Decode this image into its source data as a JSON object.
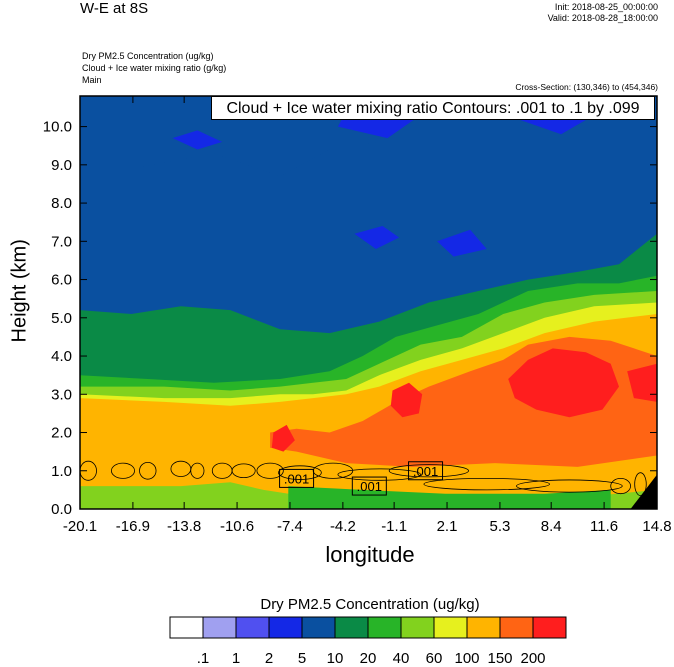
{
  "header": {
    "title": "W-E at 8S",
    "init": "Init: 2018-08-25_00:00:00",
    "valid": "Valid: 2018-08-28_18:00:00",
    "field_1": "Dry PM2.5 Concentration   (ug/kg)",
    "field_2": "Cloud + Ice water mixing ratio   (g/kg)",
    "field_3": "Main",
    "cross_section": "Cross-Section: (130,346) to (454,346)"
  },
  "contour_info": "Cloud + Ice water mixing ratio Contours: .001 to .1 by .099",
  "chart_data": {
    "type": "heatmap",
    "title": "W-E at 8S",
    "xlabel": "longitude",
    "ylabel": "Height (km)",
    "xlim": [
      -20.1,
      14.8
    ],
    "ylim": [
      0.0,
      10.8
    ],
    "x_ticks": [
      "-20.1",
      "-16.9",
      "-13.8",
      "-10.6",
      "-7.4",
      "-4.2",
      "-1.1",
      "2.1",
      "5.3",
      "8.4",
      "11.6",
      "14.8"
    ],
    "x_tick_values": [
      -20.1,
      -16.9,
      -13.8,
      -10.6,
      -7.4,
      -4.2,
      -1.1,
      2.1,
      5.3,
      8.4,
      11.6,
      14.8
    ],
    "y_ticks": [
      "0.0",
      "1.0",
      "2.0",
      "3.0",
      "4.0",
      "5.0",
      "6.0",
      "7.0",
      "8.0",
      "9.0",
      "10.0"
    ],
    "y_tick_values": [
      0.0,
      1.0,
      2.0,
      3.0,
      4.0,
      5.0,
      6.0,
      7.0,
      8.0,
      9.0,
      10.0
    ],
    "colorbar": {
      "title": "Dry PM2.5 Concentration  (ug/kg)",
      "levels": [
        ".1",
        "1",
        "2",
        "5",
        "10",
        "20",
        "40",
        "60",
        "100",
        "150",
        "200"
      ],
      "colors": [
        "#ffffff",
        "#a0a0f0",
        "#5050f0",
        "#1428e6",
        "#0a50a0",
        "#0a8a46",
        "#28b428",
        "#82d21e",
        "#e6f01e",
        "#ffb400",
        "#ff6414",
        "#ff1e1e"
      ]
    },
    "contour_labels": [
      ".001",
      ".001",
      ".001"
    ],
    "contour_label_positions": [
      [
        -7.0,
        0.8
      ],
      [
        -2.6,
        0.6
      ],
      [
        0.8,
        1.0
      ]
    ],
    "layers": [
      {
        "level": "1",
        "top": [
          [
            -20.1,
            10.8
          ],
          [
            14.8,
            10.8
          ]
        ]
      },
      {
        "level": "5",
        "top": [
          [
            -20.1,
            10.8
          ],
          [
            14.8,
            10.8
          ]
        ]
      },
      {
        "level": "10",
        "top": [
          [
            -20.1,
            5.2
          ],
          [
            -17.0,
            5.1
          ],
          [
            -14.0,
            5.3
          ],
          [
            -11.0,
            5.2
          ],
          [
            -8.0,
            4.7
          ],
          [
            -5.0,
            4.6
          ],
          [
            -2.0,
            4.9
          ],
          [
            1.0,
            5.4
          ],
          [
            4.0,
            5.7
          ],
          [
            7.0,
            6.0
          ],
          [
            10.0,
            6.2
          ],
          [
            12.5,
            6.4
          ],
          [
            14.8,
            7.2
          ]
        ]
      },
      {
        "level": "20",
        "top": [
          [
            -20.1,
            3.5
          ],
          [
            -16.0,
            3.4
          ],
          [
            -12.0,
            3.3
          ],
          [
            -8.0,
            3.4
          ],
          [
            -5.0,
            3.6
          ],
          [
            -3.0,
            4.0
          ],
          [
            -1.0,
            4.5
          ],
          [
            1.5,
            4.8
          ],
          [
            4.0,
            5.1
          ],
          [
            7.0,
            5.7
          ],
          [
            10.0,
            5.9
          ],
          [
            12.5,
            5.9
          ],
          [
            14.8,
            6.1
          ]
        ]
      },
      {
        "level": "40",
        "top": [
          [
            -20.1,
            3.2
          ],
          [
            -15.0,
            3.2
          ],
          [
            -11.0,
            3.1
          ],
          [
            -8.0,
            3.2
          ],
          [
            -6.0,
            3.3
          ],
          [
            -4.0,
            3.4
          ],
          [
            -2.0,
            3.8
          ],
          [
            0.5,
            4.3
          ],
          [
            3.0,
            4.5
          ],
          [
            5.5,
            5.1
          ],
          [
            8.0,
            5.4
          ],
          [
            11.0,
            5.6
          ],
          [
            14.8,
            5.7
          ]
        ]
      },
      {
        "level": "60",
        "top": [
          [
            -20.1,
            3.0
          ],
          [
            -15.0,
            2.9
          ],
          [
            -11.0,
            2.9
          ],
          [
            -8.0,
            3.0
          ],
          [
            -6.0,
            3.0
          ],
          [
            -4.0,
            3.1
          ],
          [
            -2.0,
            3.5
          ],
          [
            0.5,
            3.9
          ],
          [
            3.0,
            4.2
          ],
          [
            5.5,
            4.6
          ],
          [
            8.0,
            5.0
          ],
          [
            11.0,
            5.3
          ],
          [
            14.8,
            5.4
          ]
        ]
      },
      {
        "level": "100",
        "top": [
          [
            -20.1,
            2.9
          ],
          [
            -15.0,
            2.8
          ],
          [
            -11.0,
            2.7
          ],
          [
            -8.0,
            2.8
          ],
          [
            -6.0,
            2.9
          ],
          [
            -4.0,
            3.0
          ],
          [
            -2.0,
            3.2
          ],
          [
            0.5,
            3.6
          ],
          [
            3.0,
            3.9
          ],
          [
            5.5,
            4.2
          ],
          [
            8.0,
            4.6
          ],
          [
            11.0,
            4.9
          ],
          [
            14.8,
            5.1
          ]
        ]
      }
    ],
    "blobs": [
      {
        "level": "150",
        "points": [
          [
            -8.6,
            2.0
          ],
          [
            -7.0,
            2.1
          ],
          [
            -5.0,
            2.0
          ],
          [
            -3.0,
            2.3
          ],
          [
            -1.0,
            2.8
          ],
          [
            1.0,
            3.2
          ],
          [
            3.5,
            3.6
          ],
          [
            5.5,
            3.9
          ],
          [
            7.0,
            4.3
          ],
          [
            9.5,
            4.5
          ],
          [
            12.0,
            4.4
          ],
          [
            14.8,
            4.0
          ],
          [
            14.8,
            1.4
          ],
          [
            10.0,
            1.1
          ],
          [
            5.0,
            1.2
          ],
          [
            0.0,
            1.1
          ],
          [
            -4.0,
            1.2
          ],
          [
            -7.0,
            1.5
          ],
          [
            -8.6,
            1.6
          ]
        ]
      },
      {
        "level": "200",
        "points": [
          [
            5.8,
            3.4
          ],
          [
            7.0,
            3.9
          ],
          [
            8.5,
            4.2
          ],
          [
            10.5,
            4.1
          ],
          [
            12.0,
            3.8
          ],
          [
            12.5,
            3.2
          ],
          [
            11.5,
            2.6
          ],
          [
            9.5,
            2.4
          ],
          [
            7.5,
            2.6
          ],
          [
            6.2,
            2.9
          ]
        ]
      },
      {
        "level": "200",
        "points": [
          [
            -1.2,
            3.1
          ],
          [
            -0.2,
            3.3
          ],
          [
            0.6,
            3.0
          ],
          [
            0.4,
            2.5
          ],
          [
            -0.6,
            2.4
          ],
          [
            -1.3,
            2.7
          ]
        ]
      },
      {
        "level": "200",
        "points": [
          [
            -8.4,
            2.0
          ],
          [
            -7.6,
            2.2
          ],
          [
            -7.1,
            1.8
          ],
          [
            -7.8,
            1.5
          ],
          [
            -8.5,
            1.6
          ]
        ]
      },
      {
        "level": "200",
        "points": [
          [
            13.0,
            3.6
          ],
          [
            14.8,
            3.8
          ],
          [
            14.8,
            2.8
          ],
          [
            13.4,
            2.9
          ]
        ]
      },
      {
        "level": "40",
        "points": [
          [
            -20.1,
            0.6
          ],
          [
            -14.0,
            0.6
          ],
          [
            -11.0,
            0.7
          ],
          [
            -9.0,
            0.5
          ],
          [
            -6.0,
            0.3
          ],
          [
            -2.0,
            0.2
          ],
          [
            4.0,
            0.2
          ],
          [
            10.0,
            0.3
          ],
          [
            14.8,
            0.5
          ],
          [
            14.8,
            0.0
          ],
          [
            -20.1,
            0.0
          ]
        ]
      },
      {
        "level": "20",
        "points": [
          [
            -7.5,
            0.6
          ],
          [
            -3.0,
            0.5
          ],
          [
            2.0,
            0.4
          ],
          [
            8.0,
            0.4
          ],
          [
            12.0,
            0.5
          ],
          [
            12.0,
            0.0
          ],
          [
            -7.5,
            0.0
          ]
        ]
      },
      {
        "level": "5",
        "points": [
          [
            -17.0,
            8.9
          ],
          [
            -12.0,
            9.3
          ],
          [
            -8.0,
            8.7
          ],
          [
            -5.0,
            9.4
          ],
          [
            -2.0,
            9.6
          ],
          [
            -1.0,
            10.8
          ],
          [
            -20.1,
            10.8
          ],
          [
            -20.1,
            8.9
          ]
        ]
      },
      {
        "level": "2",
        "points": [
          [
            -4.5,
            10.0
          ],
          [
            -1.5,
            9.7
          ],
          [
            0.5,
            10.3
          ],
          [
            5.0,
            10.4
          ],
          [
            9.0,
            9.8
          ],
          [
            11.0,
            10.3
          ],
          [
            12.0,
            10.8
          ],
          [
            -3.5,
            10.8
          ]
        ]
      },
      {
        "level": "2",
        "points": [
          [
            -14.5,
            9.7
          ],
          [
            -13.0,
            9.9
          ],
          [
            -11.5,
            9.6
          ],
          [
            -13.0,
            9.4
          ]
        ]
      },
      {
        "level": "2",
        "points": [
          [
            -3.5,
            7.2
          ],
          [
            -1.8,
            7.4
          ],
          [
            -0.8,
            7.1
          ],
          [
            -2.2,
            6.8
          ]
        ]
      },
      {
        "level": "2",
        "points": [
          [
            1.5,
            7.0
          ],
          [
            3.5,
            7.3
          ],
          [
            4.5,
            6.8
          ],
          [
            2.5,
            6.6
          ]
        ]
      }
    ]
  }
}
